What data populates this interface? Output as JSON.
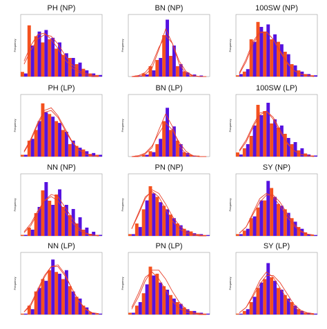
{
  "chart_data": [
    {
      "type": "bar",
      "title": "PH (NP)",
      "y_label": "Frequency",
      "ylim": [
        0,
        40
      ],
      "series": [
        {
          "color": "#f4511e",
          "values": [
            3,
            33,
            26,
            22,
            24,
            18,
            14,
            12,
            8,
            5,
            2,
            1
          ]
        },
        {
          "color": "#5512e0",
          "values": [
            2,
            20,
            29,
            30,
            25,
            22,
            15,
            12,
            9,
            4,
            2,
            1
          ]
        }
      ],
      "curves": [
        {
          "color": "#e8402a",
          "values": [
            10,
            20,
            27,
            28,
            24,
            18,
            11,
            6,
            3,
            1,
            0,
            0
          ]
        },
        {
          "color": "#e8402a",
          "values": [
            8,
            17,
            24,
            27,
            26,
            21,
            14,
            8,
            4,
            2,
            1,
            0
          ]
        }
      ]
    },
    {
      "type": "bar",
      "title": "BN (NP)",
      "y_label": "Frequency",
      "ylim": [
        0,
        60
      ],
      "series": [
        {
          "color": "#f4511e",
          "values": [
            0,
            1,
            3,
            10,
            16,
            40,
            20,
            10,
            5,
            1,
            0,
            0
          ]
        },
        {
          "color": "#5512e0",
          "values": [
            0,
            1,
            2,
            6,
            18,
            55,
            30,
            12,
            4,
            2,
            1,
            0
          ]
        }
      ],
      "curves": [
        {
          "color": "#e8402a",
          "values": [
            0,
            1,
            4,
            12,
            28,
            40,
            32,
            15,
            5,
            1,
            0,
            0
          ]
        },
        {
          "color": "#e8402a",
          "values": [
            0,
            0,
            2,
            8,
            26,
            46,
            32,
            12,
            3,
            1,
            0,
            0
          ]
        }
      ]
    },
    {
      "type": "bar",
      "title": "100SW (NP)",
      "y_label": "Frequency",
      "ylim": [
        0,
        50
      ],
      "series": [
        {
          "color": "#f4511e",
          "values": [
            1,
            4,
            30,
            44,
            36,
            30,
            28,
            20,
            10,
            5,
            2,
            1
          ]
        },
        {
          "color": "#5512e0",
          "values": [
            2,
            6,
            28,
            40,
            42,
            34,
            26,
            18,
            9,
            4,
            2,
            1
          ]
        }
      ],
      "curves": [
        {
          "color": "#e8402a",
          "values": [
            3,
            14,
            28,
            36,
            36,
            30,
            20,
            11,
            5,
            2,
            1,
            0
          ]
        },
        {
          "color": "#e8402a",
          "values": [
            2,
            12,
            26,
            35,
            36,
            30,
            21,
            12,
            5,
            2,
            1,
            0
          ]
        }
      ]
    },
    {
      "type": "bar",
      "title": "PH (LP)",
      "y_label": "Frequency",
      "ylim": [
        0,
        70
      ],
      "series": [
        {
          "color": "#f4511e",
          "values": [
            2,
            18,
            30,
            60,
            48,
            40,
            30,
            14,
            12,
            8,
            3,
            2
          ]
        },
        {
          "color": "#5512e0",
          "values": [
            2,
            20,
            40,
            50,
            45,
            38,
            28,
            18,
            10,
            6,
            4,
            2
          ]
        }
      ],
      "curves": [
        {
          "color": "#e8402a",
          "values": [
            6,
            20,
            38,
            52,
            55,
            46,
            32,
            18,
            8,
            3,
            1,
            0
          ]
        },
        {
          "color": "#e8402a",
          "values": [
            5,
            18,
            36,
            50,
            52,
            44,
            30,
            17,
            8,
            3,
            1,
            0
          ]
        }
      ]
    },
    {
      "type": "bar",
      "title": "BN (LP)",
      "y_label": "Frequency",
      "ylim": [
        0,
        70
      ],
      "series": [
        {
          "color": "#f4511e",
          "values": [
            0,
            1,
            2,
            6,
            14,
            40,
            30,
            18,
            5,
            2,
            1,
            0
          ]
        },
        {
          "color": "#5512e0",
          "values": [
            0,
            0,
            2,
            5,
            20,
            55,
            34,
            14,
            4,
            1,
            0,
            0
          ]
        }
      ],
      "curves": [
        {
          "color": "#e8402a",
          "values": [
            0,
            1,
            4,
            12,
            26,
            38,
            30,
            16,
            6,
            1,
            0,
            0
          ]
        },
        {
          "color": "#e8402a",
          "values": [
            0,
            0,
            3,
            10,
            30,
            48,
            34,
            12,
            3,
            1,
            0,
            0
          ]
        }
      ]
    },
    {
      "type": "bar",
      "title": "100SW (LP)",
      "y_label": "Frequency",
      "ylim": [
        0,
        60
      ],
      "series": [
        {
          "color": "#f4511e",
          "values": [
            4,
            8,
            20,
            50,
            44,
            32,
            28,
            22,
            12,
            6,
            3,
            1
          ]
        },
        {
          "color": "#5512e0",
          "values": [
            2,
            12,
            30,
            40,
            52,
            36,
            30,
            18,
            14,
            8,
            2,
            1
          ]
        }
      ],
      "curves": [
        {
          "color": "#e8402a",
          "values": [
            6,
            16,
            30,
            42,
            44,
            36,
            24,
            13,
            6,
            2,
            1,
            0
          ]
        },
        {
          "color": "#e8402a",
          "values": [
            5,
            14,
            28,
            40,
            44,
            38,
            26,
            14,
            6,
            2,
            1,
            0
          ]
        }
      ]
    },
    {
      "type": "bar",
      "title": "NN (NP)",
      "y_label": "Frequency",
      "ylim": [
        0,
        60
      ],
      "series": [
        {
          "color": "#f4511e",
          "values": [
            1,
            8,
            22,
            44,
            34,
            40,
            28,
            20,
            12,
            6,
            2,
            1
          ]
        },
        {
          "color": "#5512e0",
          "values": [
            1,
            6,
            28,
            52,
            30,
            45,
            30,
            26,
            18,
            8,
            4,
            1
          ]
        }
      ],
      "curves": [
        {
          "color": "#e8402a",
          "values": [
            4,
            12,
            24,
            34,
            38,
            34,
            24,
            14,
            6,
            2,
            1,
            0
          ]
        },
        {
          "color": "#e8402a",
          "values": [
            3,
            10,
            22,
            34,
            40,
            38,
            28,
            18,
            8,
            3,
            1,
            0
          ]
        }
      ]
    },
    {
      "type": "bar",
      "title": "PN (NP)",
      "y_label": "Frequency",
      "ylim": [
        0,
        70
      ],
      "series": [
        {
          "color": "#f4511e",
          "values": [
            2,
            14,
            30,
            56,
            44,
            34,
            24,
            14,
            8,
            5,
            2,
            1
          ]
        },
        {
          "color": "#5512e0",
          "values": [
            2,
            10,
            40,
            48,
            38,
            30,
            20,
            12,
            6,
            3,
            2,
            1
          ]
        }
      ],
      "curves": [
        {
          "color": "#e8402a",
          "values": [
            8,
            24,
            42,
            52,
            48,
            36,
            22,
            12,
            5,
            2,
            1,
            0
          ]
        },
        {
          "color": "#e8402a",
          "values": [
            8,
            26,
            44,
            50,
            44,
            30,
            17,
            8,
            3,
            1,
            0,
            0
          ]
        }
      ]
    },
    {
      "type": "bar",
      "title": "SY (NP)",
      "y_label": "Frequency",
      "ylim": [
        0,
        70
      ],
      "series": [
        {
          "color": "#f4511e",
          "values": [
            2,
            6,
            20,
            32,
            40,
            54,
            36,
            30,
            20,
            10,
            4,
            1
          ]
        },
        {
          "color": "#5512e0",
          "values": [
            2,
            8,
            22,
            40,
            62,
            44,
            34,
            26,
            16,
            8,
            2,
            1
          ]
        }
      ],
      "curves": [
        {
          "color": "#e8402a",
          "values": [
            3,
            10,
            24,
            38,
            46,
            46,
            38,
            26,
            14,
            6,
            2,
            1
          ]
        },
        {
          "color": "#e8402a",
          "values": [
            3,
            10,
            26,
            42,
            48,
            44,
            34,
            22,
            12,
            5,
            2,
            1
          ]
        }
      ]
    },
    {
      "type": "bar",
      "title": "NN (LP)",
      "y_label": "Frequency",
      "ylim": [
        0,
        70
      ],
      "series": [
        {
          "color": "#f4511e",
          "values": [
            1,
            10,
            26,
            40,
            50,
            48,
            40,
            32,
            20,
            10,
            3,
            1
          ]
        },
        {
          "color": "#5512e0",
          "values": [
            1,
            6,
            30,
            38,
            62,
            46,
            50,
            26,
            18,
            8,
            2,
            1
          ]
        }
      ],
      "curves": [
        {
          "color": "#e8402a",
          "values": [
            3,
            12,
            28,
            44,
            54,
            54,
            44,
            30,
            16,
            7,
            2,
            1
          ]
        },
        {
          "color": "#e8402a",
          "values": [
            3,
            10,
            26,
            42,
            54,
            56,
            46,
            30,
            16,
            6,
            2,
            1
          ]
        }
      ]
    },
    {
      "type": "bar",
      "title": "PN (LP)",
      "y_label": "Frequency",
      "ylim": [
        0,
        70
      ],
      "series": [
        {
          "color": "#f4511e",
          "values": [
            2,
            10,
            24,
            54,
            46,
            32,
            22,
            14,
            8,
            4,
            2,
            1
          ]
        },
        {
          "color": "#5512e0",
          "values": [
            2,
            14,
            34,
            44,
            36,
            28,
            18,
            12,
            6,
            4,
            2,
            1
          ]
        }
      ],
      "curves": [
        {
          "color": "#e8402a",
          "values": [
            6,
            20,
            38,
            50,
            50,
            40,
            26,
            14,
            6,
            2,
            1,
            0
          ]
        },
        {
          "color": "#e8402a",
          "values": [
            8,
            24,
            42,
            48,
            40,
            28,
            15,
            7,
            3,
            1,
            0,
            0
          ]
        }
      ]
    },
    {
      "type": "bar",
      "title": "SY (LP)",
      "y_label": "Frequency",
      "ylim": [
        0,
        70
      ],
      "series": [
        {
          "color": "#f4511e",
          "values": [
            1,
            4,
            14,
            30,
            40,
            42,
            30,
            22,
            14,
            6,
            2,
            1
          ]
        },
        {
          "color": "#5512e0",
          "values": [
            1,
            6,
            20,
            36,
            58,
            38,
            28,
            18,
            10,
            4,
            2,
            1
          ]
        }
      ],
      "curves": [
        {
          "color": "#e8402a",
          "values": [
            2,
            8,
            20,
            34,
            44,
            44,
            36,
            24,
            12,
            5,
            2,
            1
          ]
        },
        {
          "color": "#e8402a",
          "values": [
            2,
            8,
            22,
            38,
            48,
            42,
            30,
            18,
            9,
            3,
            1,
            0
          ]
        }
      ]
    }
  ]
}
